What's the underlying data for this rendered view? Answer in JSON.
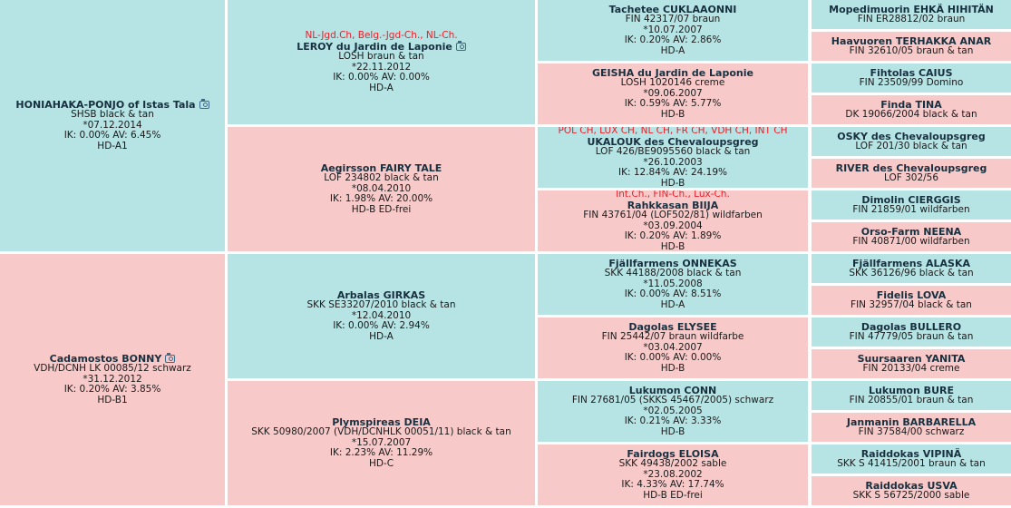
{
  "dogs": [
    {
      "id": "s",
      "sex": "male",
      "name": "HONIAHAKA-PONJO of Istas Tala",
      "photo": true,
      "titles": "",
      "reg": "SHSB black & tan",
      "born": "*07.12.2014",
      "ik": "IK: 0.00% AV: 6.45%",
      "hd": "HD-A1"
    },
    {
      "id": "d",
      "sex": "female",
      "name": "Cadamostos BONNY",
      "photo": true,
      "titles": "",
      "reg": "VDH/DCNH LK 00085/12 schwarz",
      "born": "*31.12.2012",
      "ik": "IK: 0.20% AV: 3.85%",
      "hd": "HD-B1"
    },
    {
      "id": "ss",
      "sex": "male",
      "name": "LEROY du Jardin de Laponie",
      "photo": true,
      "titles": "NL-Jgd.Ch, Belg.-Jgd-Ch., NL-Ch.",
      "reg": "LOSH braun & tan",
      "born": "*22.11.2012",
      "ik": "IK: 0.00% AV: 0.00%",
      "hd": "HD-A"
    },
    {
      "id": "sd",
      "sex": "female",
      "name": "Aegirsson FAIRY TALE",
      "photo": false,
      "titles": "",
      "reg": "LOF 234802 black & tan",
      "born": "*08.04.2010",
      "ik": "IK: 1.98% AV: 20.00%",
      "hd": "HD-B ED-frei"
    },
    {
      "id": "ds",
      "sex": "male",
      "name": "Arbalas GIRKAS",
      "photo": false,
      "titles": "",
      "reg": "SKK SE33207/2010 black & tan",
      "born": "*12.04.2010",
      "ik": "IK: 0.00% AV: 2.94%",
      "hd": "HD-A"
    },
    {
      "id": "dd",
      "sex": "female",
      "name": "Plymspireas DEIA",
      "photo": false,
      "titles": "",
      "reg": "SKK 50980/2007 (VDH/DCNHLK 00051/11) black & tan",
      "born": "*15.07.2007",
      "ik": "IK: 2.23% AV: 11.29%",
      "hd": "HD-C"
    },
    {
      "id": "sss",
      "sex": "male",
      "name": "Tachetee CUKLAAONNI",
      "photo": false,
      "titles": "",
      "reg": "FIN 42317/07 braun",
      "born": "*10.07.2007",
      "ik": "IK: 0.20% AV: 2.86%",
      "hd": "HD-A"
    },
    {
      "id": "ssd",
      "sex": "female",
      "name": "GEISHA du Jardin de Laponie",
      "photo": false,
      "titles": "",
      "reg": "LOSH 1020146 creme",
      "born": "*09.06.2007",
      "ik": "IK: 0.59% AV: 5.77%",
      "hd": "HD-B"
    },
    {
      "id": "sds",
      "sex": "male",
      "name": "UKALOUK des Chevaloupsgreg",
      "photo": false,
      "titles": "POL CH, LUX CH, NL CH, FR CH, VDH CH, INT CH",
      "reg": "LOF 426/BE9095560 black & tan",
      "born": "*26.10.2003",
      "ik": "IK: 12.84% AV: 24.19%",
      "hd": "HD-B"
    },
    {
      "id": "sdd",
      "sex": "female",
      "name": "Rahkkasan BIIJA",
      "photo": false,
      "titles": "Int.Ch., FIN-Ch., Lux-Ch.",
      "reg": "FIN 43761/04 (LOF502/81) wildfarben",
      "born": "*03.09.2004",
      "ik": "IK: 0.20% AV: 1.89%",
      "hd": "HD-B"
    },
    {
      "id": "dss",
      "sex": "male",
      "name": "Fjällfarmens ONNEKAS",
      "photo": false,
      "titles": "",
      "reg": "SKK 44188/2008 black & tan",
      "born": "*11.05.2008",
      "ik": "IK: 0.00% AV: 8.51%",
      "hd": "HD-A"
    },
    {
      "id": "dsd",
      "sex": "female",
      "name": "Dagolas ELYSEE",
      "photo": false,
      "titles": "",
      "reg": "FIN 25442/07 braun wildfarbe",
      "born": "*03.04.2007",
      "ik": "IK: 0.00% AV: 0.00%",
      "hd": "HD-B"
    },
    {
      "id": "dds",
      "sex": "male",
      "name": "Lukumon CONN",
      "photo": false,
      "titles": "",
      "reg": "FIN 27681/05 (SKKS 45467/2005) schwarz",
      "born": "*02.05.2005",
      "ik": "IK: 0.21% AV: 3.33%",
      "hd": "HD-B"
    },
    {
      "id": "ddd",
      "sex": "female",
      "name": "Fairdogs ELOISA",
      "photo": false,
      "titles": "",
      "reg": "SKK 49438/2002 sable",
      "born": "*23.08.2002",
      "ik": "IK: 4.33% AV: 17.74%",
      "hd": "HD-B ED-frei"
    },
    {
      "id": "g1",
      "sex": "male",
      "name": "Mopedimuorin EHKÄ HIHITÄN",
      "photo": false,
      "titles": "",
      "reg": "FIN ER28812/02 braun",
      "born": "",
      "ik": "",
      "hd": ""
    },
    {
      "id": "g2",
      "sex": "female",
      "name": "Haavuoren TERHAKKA ANAR",
      "photo": false,
      "titles": "",
      "reg": "FIN 32610/05 braun & tan",
      "born": "",
      "ik": "",
      "hd": ""
    },
    {
      "id": "g3",
      "sex": "male",
      "name": "Fihtolas CAIUS",
      "photo": false,
      "titles": "",
      "reg": "FIN 23509/99 Domino",
      "born": "",
      "ik": "",
      "hd": ""
    },
    {
      "id": "g4",
      "sex": "female",
      "name": "Finda TINA",
      "photo": false,
      "titles": "",
      "reg": "DK 19066/2004 black & tan",
      "born": "",
      "ik": "",
      "hd": ""
    },
    {
      "id": "g5",
      "sex": "male",
      "name": "OSKY des Chevaloupsgreg",
      "photo": false,
      "titles": "",
      "reg": "LOF 201/30 black & tan",
      "born": "",
      "ik": "",
      "hd": ""
    },
    {
      "id": "g6",
      "sex": "female",
      "name": "RIVER des Chevaloupsgreg",
      "photo": false,
      "titles": "",
      "reg": "LOF 302/56",
      "born": "",
      "ik": "",
      "hd": ""
    },
    {
      "id": "g7",
      "sex": "male",
      "name": "Dimolin CIERGGIS",
      "photo": false,
      "titles": "",
      "reg": "FIN 21859/01 wildfarben",
      "born": "",
      "ik": "",
      "hd": ""
    },
    {
      "id": "g8",
      "sex": "female",
      "name": "Orso-Farm NEENA",
      "photo": false,
      "titles": "",
      "reg": "FIN 40871/00 wildfarben",
      "born": "",
      "ik": "",
      "hd": ""
    },
    {
      "id": "g9",
      "sex": "male",
      "name": "Fjällfarmens ALASKA",
      "photo": false,
      "titles": "",
      "reg": "SKK 36126/96 black & tan",
      "born": "",
      "ik": "",
      "hd": ""
    },
    {
      "id": "g10",
      "sex": "female",
      "name": "Fidelis LOVA",
      "photo": false,
      "titles": "",
      "reg": "FIN 32957/04 black & tan",
      "born": "",
      "ik": "",
      "hd": ""
    },
    {
      "id": "g11",
      "sex": "male",
      "name": "Dagolas BULLERO",
      "photo": false,
      "titles": "",
      "reg": "FIN 47779/05 braun & tan",
      "born": "",
      "ik": "",
      "hd": ""
    },
    {
      "id": "g12",
      "sex": "female",
      "name": "Suursaaren YANITA",
      "photo": false,
      "titles": "",
      "reg": "FIN 20133/04 creme",
      "born": "",
      "ik": "",
      "hd": ""
    },
    {
      "id": "g13",
      "sex": "male",
      "name": "Lukumon BURE",
      "photo": false,
      "titles": "",
      "reg": "FIN 20855/01 braun & tan",
      "born": "",
      "ik": "",
      "hd": ""
    },
    {
      "id": "g14",
      "sex": "female",
      "name": "Janmanin BARBARELLA",
      "photo": false,
      "titles": "",
      "reg": "FIN 37584/00 schwarz",
      "born": "",
      "ik": "",
      "hd": ""
    },
    {
      "id": "g15",
      "sex": "male",
      "name": "Raiddokas VIPINÄ",
      "photo": false,
      "titles": "",
      "reg": "SKK S 41415/2001 braun & tan",
      "born": "",
      "ik": "",
      "hd": ""
    },
    {
      "id": "g16",
      "sex": "female",
      "name": "Raiddokas USVA",
      "photo": false,
      "titles": "",
      "reg": "SKK S 56725/2000 sable",
      "born": "",
      "ik": "",
      "hd": ""
    }
  ]
}
